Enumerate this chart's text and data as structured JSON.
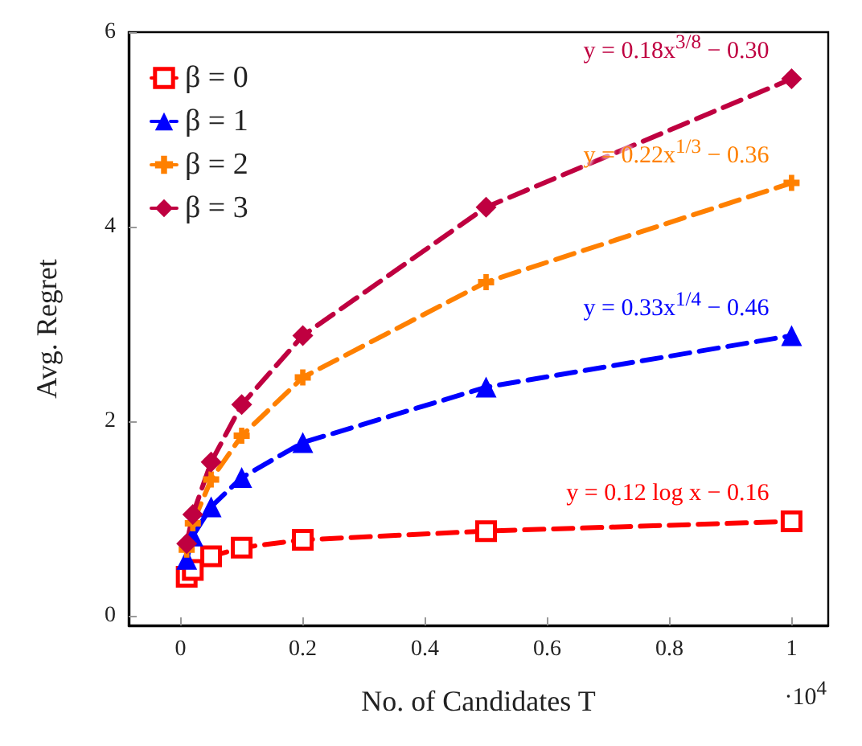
{
  "chart_data": {
    "type": "line",
    "xlabel": "No. of Candidates T",
    "ylabel": "Avg. Regret",
    "x": [
      0.01,
      0.02,
      0.05,
      0.1,
      0.2,
      0.5,
      1
    ],
    "series": [
      {
        "name": "β = 0",
        "color": "#ff0000",
        "marker": "square",
        "values": [
          0.4,
          0.47,
          0.61,
          0.7,
          0.78,
          0.87,
          0.97
        ]
      },
      {
        "name": "β = 1",
        "color": "#0000ff",
        "marker": "triangle",
        "values": [
          0.58,
          0.82,
          1.12,
          1.42,
          1.78,
          2.35,
          2.88
        ]
      },
      {
        "name": "β = 2",
        "color": "#ff8000",
        "marker": "cross",
        "values": [
          0.68,
          0.95,
          1.4,
          1.85,
          2.45,
          3.43,
          4.45
        ]
      },
      {
        "name": "β = 3",
        "color": "#bf0040",
        "marker": "diamond",
        "values": [
          0.74,
          1.04,
          1.58,
          2.17,
          2.88,
          4.2,
          5.52
        ]
      }
    ],
    "line_style": "dashed",
    "xlim": [
      -0.085,
      1.06
    ],
    "xticks": [
      0,
      0.2,
      0.4,
      0.6,
      0.8,
      1
    ],
    "ylim": [
      -0.1,
      6
    ],
    "yticks": [
      0,
      2,
      4,
      6
    ],
    "grid": false,
    "legend": "top left",
    "annotations": [
      "y = 0.12 log x − 0.16",
      "y = 0.33x$^{1/4}$ − 0.46",
      "y = 0.22x$^{1/3}$ − 0.36",
      "y = 0.18x$^{3/8}$ − 0.30",
      "·10$^{4}$"
    ]
  }
}
